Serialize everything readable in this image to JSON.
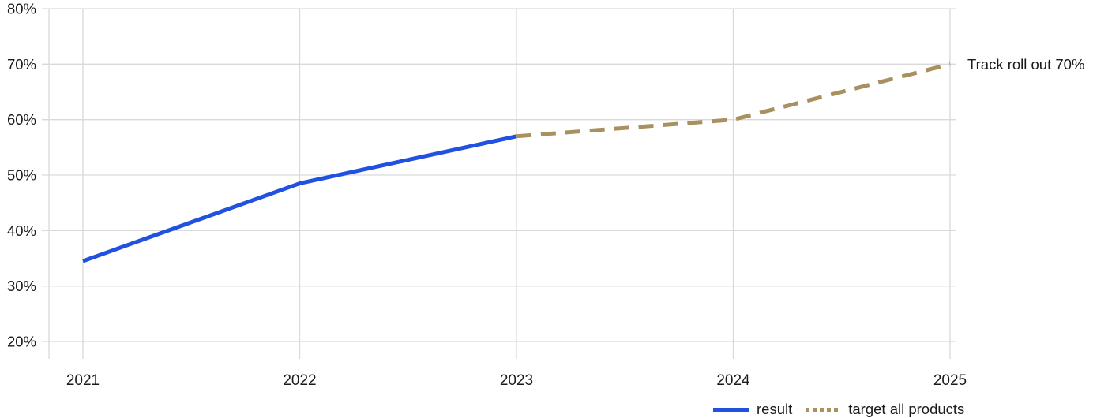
{
  "chart_data": {
    "type": "line",
    "title": "",
    "xlabel": "",
    "ylabel": "",
    "x": [
      2021,
      2022,
      2023,
      2024,
      2025
    ],
    "x_tick_labels": [
      "2021",
      "2022",
      "2023",
      "2024",
      "2025"
    ],
    "y_tick_labels": [
      "80%",
      "70%",
      "60%",
      "50%",
      "40%",
      "30%",
      "20%"
    ],
    "ylim": [
      20,
      80
    ],
    "ytick_step": 10,
    "ytick_format": "percent",
    "grid": true,
    "series": [
      {
        "name": "result",
        "style": "solid",
        "color": "#2151e0",
        "points": [
          [
            2021,
            34.5
          ],
          [
            2022,
            48.5
          ],
          [
            2023,
            57
          ]
        ]
      },
      {
        "name": "target all products",
        "style": "dashed",
        "color": "#a8905f",
        "points": [
          [
            2023,
            57
          ],
          [
            2024,
            60
          ],
          [
            2025,
            70
          ]
        ]
      }
    ],
    "annotation": {
      "text": "Track roll out 70%",
      "x": 2025,
      "y": 70
    },
    "legend": {
      "position": "bottom-right",
      "items": [
        {
          "label": "result",
          "swatch": "solid-line",
          "color": "#2151e0"
        },
        {
          "label": "target all products",
          "swatch": "dotted",
          "color": "#a8905f"
        }
      ]
    }
  },
  "colors": {
    "background": "#ffffff",
    "grid": "#d9d9d9",
    "text": "#1a1a1a",
    "result_blue": "#2151e0",
    "target_tan": "#a8905f"
  }
}
